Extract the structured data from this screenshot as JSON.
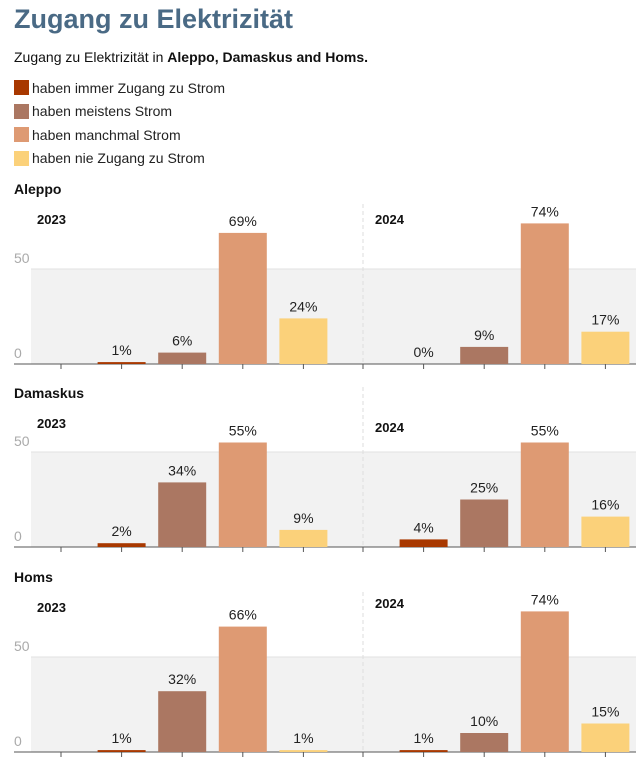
{
  "title": "Zugang zu Elektrizität",
  "subtitle_prefix": "Zugang zu Elektrizität in ",
  "subtitle_bold": "Aleppo, Damaskus and Homs.",
  "chart_data": {
    "type": "bar",
    "categories": [
      "haben immer Zugang zu Strom",
      "haben meistens Strom",
      "haben manchmal Strom",
      "haben nie Zugang zu Strom"
    ],
    "colors": [
      "#a83800",
      "#ab7762",
      "#de9a73",
      "#fbd17a"
    ],
    "ylim": [
      0,
      50
    ],
    "yticks": [
      0,
      50
    ],
    "value_suffix": "%",
    "grid": true,
    "legend_position": "top-left",
    "panels": [
      {
        "city": "Aleppo",
        "years": [
          {
            "year": "2023",
            "values": [
              1,
              6,
              69,
              24
            ]
          },
          {
            "year": "2024",
            "values": [
              0,
              9,
              74,
              17
            ]
          }
        ]
      },
      {
        "city": "Damaskus",
        "years": [
          {
            "year": "2023",
            "values": [
              2,
              34,
              55,
              9
            ]
          },
          {
            "year": "2024",
            "values": [
              4,
              25,
              55,
              16
            ]
          }
        ]
      },
      {
        "city": "Homs",
        "years": [
          {
            "year": "2023",
            "values": [
              1,
              32,
              66,
              1
            ]
          },
          {
            "year": "2024",
            "values": [
              1,
              10,
              74,
              15
            ]
          }
        ]
      }
    ]
  }
}
